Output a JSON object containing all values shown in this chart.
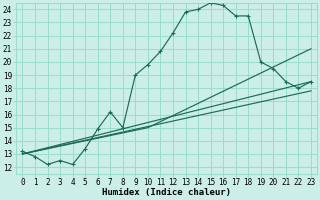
{
  "xlabel": "Humidex (Indice chaleur)",
  "bg_color": "#cceee8",
  "grid_color": "#99ddcc",
  "line_color": "#1a6b5a",
  "xlim": [
    -0.5,
    23.5
  ],
  "ylim": [
    11.5,
    24.5
  ],
  "xticks": [
    0,
    1,
    2,
    3,
    4,
    5,
    6,
    7,
    8,
    9,
    10,
    11,
    12,
    13,
    14,
    15,
    16,
    17,
    18,
    19,
    20,
    21,
    22,
    23
  ],
  "yticks": [
    12,
    13,
    14,
    15,
    16,
    17,
    18,
    19,
    20,
    21,
    22,
    23,
    24
  ],
  "line1_x": [
    0,
    1,
    2,
    3,
    4,
    5,
    6,
    7,
    8,
    9,
    10,
    11,
    12,
    13,
    14,
    15,
    16,
    17,
    18,
    19,
    20,
    21,
    22,
    23
  ],
  "line1_y": [
    13.2,
    12.8,
    12.2,
    12.5,
    12.2,
    13.4,
    14.9,
    16.2,
    15.0,
    19.0,
    19.8,
    20.8,
    22.2,
    23.8,
    24.0,
    24.5,
    24.3,
    23.5,
    23.5,
    20.0,
    19.5,
    18.5,
    18.0,
    18.5
  ],
  "line2_x": [
    0,
    23
  ],
  "line2_y": [
    13.0,
    18.5
  ],
  "line3_x": [
    0,
    23
  ],
  "line3_y": [
    13.0,
    17.8
  ],
  "line4_x": [
    0,
    10,
    23
  ],
  "line4_y": [
    13.0,
    15.0,
    21.0
  ],
  "tick_fontsize": 5.5,
  "xlabel_fontsize": 6.5
}
